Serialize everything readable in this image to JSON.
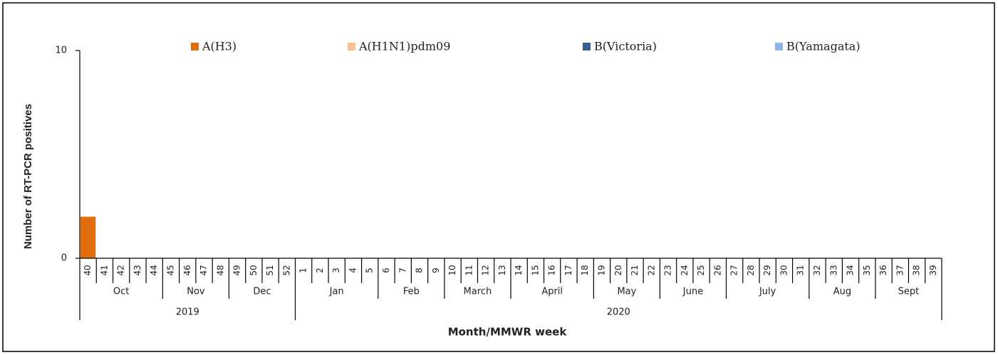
{
  "chart_data": {
    "type": "stacked_bar",
    "x_label": "Month/MMWR week",
    "y_label": "Number of RT-PCR positives",
    "categories": [
      "40",
      "41",
      "42",
      "43",
      "44",
      "45",
      "46",
      "47",
      "48",
      "49",
      "50",
      "51",
      "52",
      "1",
      "2",
      "3",
      "4",
      "5",
      "6",
      "7",
      "8",
      "9",
      "10",
      "11",
      "12",
      "13",
      "14",
      "15",
      "16",
      "17",
      "18",
      "19",
      "20",
      "21",
      "22",
      "23",
      "24",
      "25",
      "26",
      "27",
      "28",
      "29",
      "30",
      "31",
      "32",
      "33",
      "34",
      "35",
      "36",
      "37",
      "38",
      "39"
    ],
    "month": [
      "Oct",
      "Oct",
      "Oct",
      "Oct",
      "Oct",
      "Nov",
      "Nov",
      "Nov",
      "Nov",
      "Dec",
      "Dec",
      "Dec",
      "Dec",
      "Jan",
      "Jan",
      "Jan",
      "Jan",
      "Jan",
      "Feb",
      "Feb",
      "Feb",
      "Feb",
      "March",
      "March",
      "March",
      "March",
      "April",
      "April",
      "April",
      "April",
      "April",
      "May",
      "May",
      "May",
      "May",
      "June",
      "June",
      "June",
      "June",
      "July",
      "July",
      "July",
      "July",
      "July",
      "Aug",
      "Aug",
      "Aug",
      "Aug",
      "Sept",
      "Sept",
      "Sept",
      "Sept"
    ],
    "year": [
      "2019",
      "2019",
      "2019",
      "2019",
      "2019",
      "2019",
      "2019",
      "2019",
      "2019",
      "2019",
      "2019",
      "2019",
      "2019",
      "2020",
      "2020",
      "2020",
      "2020",
      "2020",
      "2020",
      "2020",
      "2020",
      "2020",
      "2020",
      "2020",
      "2020",
      "2020",
      "2020",
      "2020",
      "2020",
      "2020",
      "2020",
      "2020",
      "2020",
      "2020",
      "2020",
      "2020",
      "2020",
      "2020",
      "2020",
      "2020",
      "2020",
      "2020",
      "2020",
      "2020",
      "2020",
      "2020",
      "2020",
      "2020",
      "2020",
      "2020",
      "2020",
      "2020"
    ],
    "series": [
      {
        "name": "A(H3)",
        "color": "#e36c0a",
        "values": [
          2,
          0,
          0,
          0,
          0,
          0,
          0,
          0,
          0,
          0,
          0,
          0,
          0,
          0,
          0,
          0,
          0,
          0,
          0,
          0,
          0,
          0,
          0,
          0,
          0,
          0,
          0,
          0,
          0,
          0,
          0,
          0,
          0,
          0,
          0,
          0,
          0,
          0,
          0,
          0,
          0,
          0,
          0,
          0,
          0,
          0,
          0,
          0,
          0,
          0,
          0,
          0
        ]
      },
      {
        "name": "A(H1N1)pdm09",
        "color": "#fac090",
        "values": [
          0,
          0,
          0,
          0,
          0,
          0,
          0,
          0,
          0,
          0,
          0,
          0,
          0,
          0,
          0,
          0,
          0,
          0,
          0,
          0,
          0,
          0,
          0,
          0,
          0,
          0,
          0,
          0,
          0,
          0,
          0,
          0,
          0,
          0,
          0,
          0,
          0,
          0,
          0,
          0,
          0,
          0,
          0,
          0,
          0,
          0,
          0,
          0,
          0,
          0,
          0,
          0
        ]
      },
      {
        "name": "B(Victoria)",
        "color": "#335f94",
        "values": [
          0,
          0,
          0,
          0,
          0,
          0,
          0,
          0,
          0,
          0,
          0,
          0,
          0,
          0,
          0,
          0,
          0,
          0,
          0,
          0,
          0,
          0,
          0,
          0,
          0,
          0,
          0,
          0,
          0,
          0,
          0,
          0,
          0,
          0,
          0,
          0,
          0,
          0,
          0,
          0,
          0,
          0,
          0,
          0,
          0,
          0,
          0,
          0,
          0,
          0,
          0,
          0
        ]
      },
      {
        "name": "B(Yamagata)",
        "color": "#8db4e2",
        "values": [
          0,
          0,
          0,
          0,
          0,
          0,
          0,
          0,
          0,
          0,
          0,
          0,
          0,
          0,
          0,
          0,
          0,
          0,
          0,
          0,
          0,
          0,
          0,
          0,
          0,
          0,
          0,
          0,
          0,
          0,
          0,
          0,
          0,
          0,
          0,
          0,
          0,
          0,
          0,
          0,
          0,
          0,
          0,
          0,
          0,
          0,
          0,
          0,
          0,
          0,
          0,
          0
        ]
      }
    ],
    "ylim": [
      0,
      10
    ],
    "yticks": [
      0,
      10
    ],
    "grid": false,
    "legend": "top"
  }
}
